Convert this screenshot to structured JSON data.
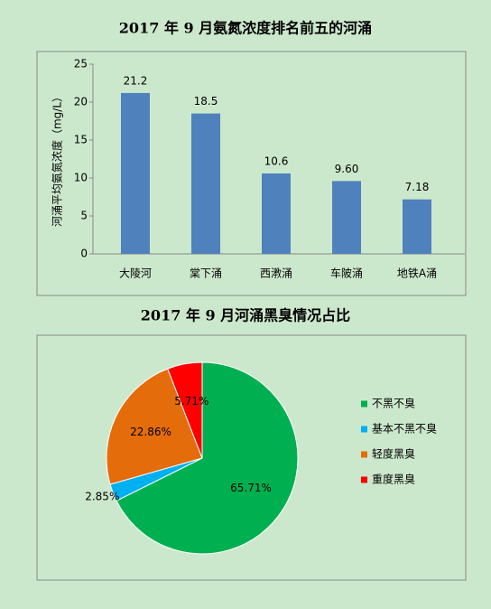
{
  "chart_data": [
    {
      "type": "bar",
      "title": "2017 年 9 月氨氮浓度排名前五的河涌",
      "y_label": "河涌平均氨氮浓度（mg/L）",
      "categories": [
        "大陵河",
        "棠下涌",
        "西漖涌",
        "车陂涌",
        "地铁A涌"
      ],
      "values": [
        21.2,
        18.5,
        10.6,
        9.6,
        7.18
      ],
      "value_labels": [
        "21.2",
        "18.5",
        "10.6",
        "9.60",
        "7.18"
      ],
      "color": "#4f81bd",
      "ylim": [
        0,
        25
      ],
      "yticks": [
        0,
        5,
        10,
        15,
        20,
        25
      ],
      "grid": false
    },
    {
      "type": "pie",
      "title": "2017 年 9 月河涌黑臭情况占比",
      "categories": [
        "不黑不臭",
        "基本不黑不臭",
        "轻度黑臭",
        "重度黑臭"
      ],
      "values": [
        65.71,
        2.85,
        22.86,
        5.71
      ],
      "value_labels": [
        "65.71%",
        "2.85%",
        "22.86%",
        "5.71%"
      ],
      "colors": [
        "#00b050",
        "#00b0f0",
        "#e46c0a",
        "#ff0000"
      ],
      "legend": "right"
    }
  ]
}
